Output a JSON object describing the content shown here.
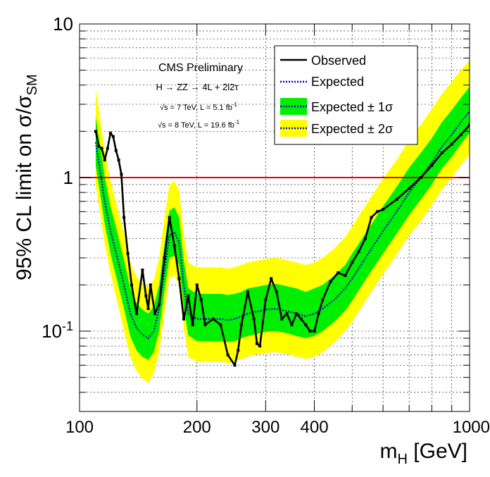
{
  "chart_data": {
    "type": "line",
    "x_scale": "log",
    "y_scale": "log",
    "xlim": [
      100,
      1000
    ],
    "ylim": [
      0.03,
      10
    ],
    "grid": true,
    "x_ticks": [
      {
        "value": 100,
        "label": "100"
      },
      {
        "value": 200,
        "label": "200"
      },
      {
        "value": 300,
        "label": "300"
      },
      {
        "value": 400,
        "label": "400"
      },
      {
        "value": 1000,
        "label": "1000"
      }
    ],
    "y_ticks": [
      {
        "value": 0.1,
        "label": "10",
        "sup": "-1"
      },
      {
        "value": 1,
        "label": "1",
        "sup": ""
      },
      {
        "value": 10,
        "label": "10",
        "sup": ""
      }
    ],
    "xlabel": {
      "main": "m",
      "sub": "H",
      "rest": " [GeV]"
    },
    "ylabel": {
      "main": "95% CL limit on σ/σ",
      "sub": "SM"
    },
    "reference_line": {
      "y": 1,
      "color": "#e8000b"
    },
    "annotations": {
      "line1": "CMS Preliminary",
      "line2": "H → ZZ → 4L + 2l2τ",
      "line3_prefix": "√s = 7 TeV, L = 5.1 fb",
      "line3_sup": "-1",
      "line4_prefix": "√s = 8 TeV, L = 19.6 fb",
      "line4_sup": "-1"
    },
    "legend": {
      "placement": "top-right",
      "entries": [
        {
          "label": "Observed",
          "style": "solid",
          "color": "#000000"
        },
        {
          "label": "Expected",
          "style": "dotted",
          "color": "#0000cc"
        },
        {
          "label": "Expected ± 1σ",
          "style": "band",
          "color": "#00ee00"
        },
        {
          "label": "Expected ± 2σ",
          "style": "band",
          "color": "#ffff00"
        }
      ]
    },
    "series": [
      {
        "name": "Expected",
        "color": "#0000cc",
        "x": [
          110,
          113,
          116,
          120,
          125,
          130,
          135,
          140,
          145,
          150,
          155,
          160,
          165,
          170,
          175,
          180,
          185,
          190,
          200,
          210,
          220,
          230,
          240,
          250,
          260,
          270,
          280,
          290,
          300,
          320,
          340,
          360,
          380,
          400,
          420,
          450,
          480,
          500,
          550,
          600,
          650,
          700,
          750,
          800,
          850,
          900,
          950,
          1000
        ],
        "y": [
          1.7,
          1.1,
          0.7,
          0.45,
          0.3,
          0.2,
          0.13,
          0.105,
          0.095,
          0.09,
          0.1,
          0.14,
          0.25,
          0.42,
          0.44,
          0.38,
          0.2,
          0.13,
          0.12,
          0.12,
          0.12,
          0.12,
          0.118,
          0.12,
          0.125,
          0.13,
          0.133,
          0.135,
          0.138,
          0.14,
          0.135,
          0.13,
          0.125,
          0.13,
          0.14,
          0.16,
          0.19,
          0.22,
          0.32,
          0.45,
          0.6,
          0.8,
          1.0,
          1.25,
          1.6,
          1.9,
          2.3,
          2.7
        ]
      },
      {
        "name": "Expected ± 1σ",
        "color": "#00ee00",
        "x": [
          110,
          113,
          116,
          120,
          125,
          130,
          135,
          140,
          145,
          150,
          155,
          160,
          165,
          170,
          175,
          180,
          185,
          190,
          200,
          210,
          220,
          230,
          240,
          250,
          260,
          270,
          280,
          290,
          300,
          320,
          340,
          360,
          380,
          400,
          420,
          450,
          480,
          500,
          550,
          600,
          650,
          700,
          750,
          800,
          850,
          900,
          950,
          1000
        ],
        "lower": [
          1.2,
          0.78,
          0.5,
          0.32,
          0.21,
          0.14,
          0.092,
          0.075,
          0.068,
          0.065,
          0.073,
          0.1,
          0.18,
          0.3,
          0.31,
          0.27,
          0.145,
          0.094,
          0.086,
          0.086,
          0.086,
          0.086,
          0.085,
          0.086,
          0.09,
          0.093,
          0.095,
          0.097,
          0.099,
          0.1,
          0.097,
          0.093,
          0.09,
          0.093,
          0.1,
          0.115,
          0.136,
          0.158,
          0.23,
          0.32,
          0.43,
          0.57,
          0.72,
          0.9,
          1.15,
          1.36,
          1.65,
          1.95
        ],
        "upper": [
          2.5,
          1.6,
          1.02,
          0.65,
          0.44,
          0.29,
          0.19,
          0.152,
          0.138,
          0.13,
          0.145,
          0.2,
          0.36,
          0.61,
          0.64,
          0.55,
          0.29,
          0.19,
          0.175,
          0.175,
          0.175,
          0.175,
          0.172,
          0.175,
          0.18,
          0.19,
          0.193,
          0.196,
          0.2,
          0.203,
          0.196,
          0.19,
          0.18,
          0.19,
          0.2,
          0.23,
          0.27,
          0.32,
          0.46,
          0.65,
          0.87,
          1.16,
          1.45,
          1.8,
          2.3,
          2.75,
          3.3,
          3.9
        ]
      },
      {
        "name": "Expected ± 2σ",
        "color": "#ffff00",
        "x": [
          110,
          113,
          116,
          120,
          125,
          130,
          135,
          140,
          145,
          150,
          155,
          160,
          165,
          170,
          175,
          180,
          185,
          190,
          200,
          210,
          220,
          230,
          240,
          250,
          260,
          270,
          280,
          290,
          300,
          320,
          340,
          360,
          380,
          400,
          420,
          450,
          480,
          500,
          550,
          600,
          650,
          700,
          750,
          800,
          850,
          900,
          950,
          1000
        ],
        "lower": [
          0.9,
          0.58,
          0.37,
          0.24,
          0.155,
          0.1,
          0.068,
          0.055,
          0.049,
          0.046,
          0.053,
          0.073,
          0.13,
          0.22,
          0.23,
          0.2,
          0.105,
          0.068,
          0.063,
          0.063,
          0.063,
          0.063,
          0.062,
          0.063,
          0.066,
          0.068,
          0.07,
          0.071,
          0.072,
          0.073,
          0.071,
          0.068,
          0.066,
          0.068,
          0.073,
          0.084,
          0.1,
          0.115,
          0.168,
          0.235,
          0.315,
          0.42,
          0.52,
          0.66,
          0.84,
          1.0,
          1.2,
          1.42
        ],
        "upper": [
          3.8,
          2.4,
          1.5,
          0.95,
          0.64,
          0.43,
          0.28,
          0.225,
          0.205,
          0.195,
          0.215,
          0.3,
          0.54,
          0.9,
          0.95,
          0.82,
          0.43,
          0.28,
          0.26,
          0.26,
          0.26,
          0.26,
          0.255,
          0.26,
          0.27,
          0.28,
          0.285,
          0.29,
          0.295,
          0.3,
          0.29,
          0.28,
          0.27,
          0.28,
          0.3,
          0.345,
          0.41,
          0.48,
          0.7,
          0.98,
          1.3,
          1.75,
          2.2,
          2.8,
          3.5,
          4.2,
          5.0,
          5.8
        ]
      },
      {
        "name": "Observed",
        "color": "#000000",
        "x": [
          110,
          112,
          114,
          116,
          118,
          120,
          122,
          124,
          126,
          128,
          130,
          133,
          136,
          140,
          145,
          148,
          150,
          152,
          156,
          160,
          165,
          170,
          175,
          180,
          185,
          190,
          195,
          200,
          205,
          210,
          220,
          230,
          240,
          250,
          255,
          260,
          270,
          280,
          285,
          290,
          300,
          310,
          320,
          330,
          340,
          350,
          360,
          370,
          380,
          390,
          400,
          410,
          420,
          440,
          460,
          480,
          500,
          520,
          540,
          560,
          580,
          600,
          650,
          700,
          750,
          800,
          850,
          900,
          950,
          1000
        ],
        "y": [
          2.0,
          1.6,
          1.55,
          1.3,
          1.55,
          1.95,
          1.85,
          1.5,
          1.3,
          1.05,
          0.55,
          0.32,
          0.2,
          0.13,
          0.25,
          0.17,
          0.14,
          0.2,
          0.13,
          0.15,
          0.3,
          0.55,
          0.36,
          0.22,
          0.12,
          0.17,
          0.11,
          0.2,
          0.16,
          0.11,
          0.12,
          0.11,
          0.07,
          0.06,
          0.075,
          0.11,
          0.18,
          0.12,
          0.083,
          0.08,
          0.16,
          0.22,
          0.18,
          0.12,
          0.13,
          0.11,
          0.13,
          0.12,
          0.11,
          0.1,
          0.1,
          0.13,
          0.16,
          0.21,
          0.24,
          0.23,
          0.28,
          0.33,
          0.4,
          0.55,
          0.6,
          0.62,
          0.72,
          0.85,
          1.0,
          1.2,
          1.45,
          1.65,
          1.9,
          2.2
        ]
      }
    ]
  }
}
